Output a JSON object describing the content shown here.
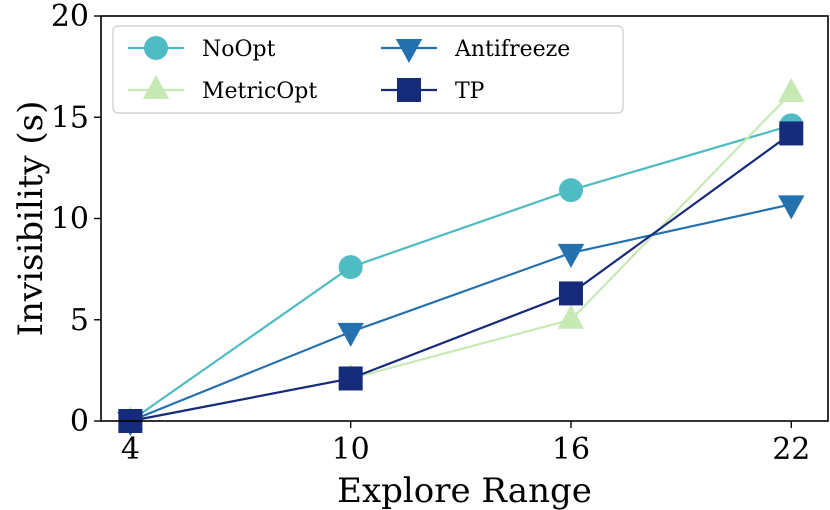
{
  "chart_data": {
    "type": "line",
    "xlabel": "Explore Range",
    "ylabel": "Invisibility (s)",
    "x": [
      4,
      10,
      16,
      22
    ],
    "x_ticks": [
      "4",
      "10",
      "16",
      "22"
    ],
    "y_ticks": [
      "0",
      "5",
      "10",
      "15",
      "20"
    ],
    "ylim": [
      0,
      20
    ],
    "xlim": [
      3.2,
      23.0
    ],
    "grid": false,
    "legend_position": "top-left",
    "series": [
      {
        "name": "NoOpt",
        "values": [
          0,
          7.6,
          11.4,
          14.6
        ],
        "color": "#4fbcc3",
        "marker": "circle"
      },
      {
        "name": "MetricOpt",
        "values": [
          0,
          2.1,
          5.0,
          16.2
        ],
        "color": "#c7e9b4",
        "marker": "triangle-up"
      },
      {
        "name": "Antifreeze",
        "values": [
          0,
          4.4,
          8.3,
          10.7
        ],
        "color": "#2471b0",
        "marker": "triangle-down"
      },
      {
        "name": "TP",
        "values": [
          0,
          2.1,
          6.3,
          14.2
        ],
        "color": "#172b7b",
        "marker": "square"
      }
    ]
  }
}
